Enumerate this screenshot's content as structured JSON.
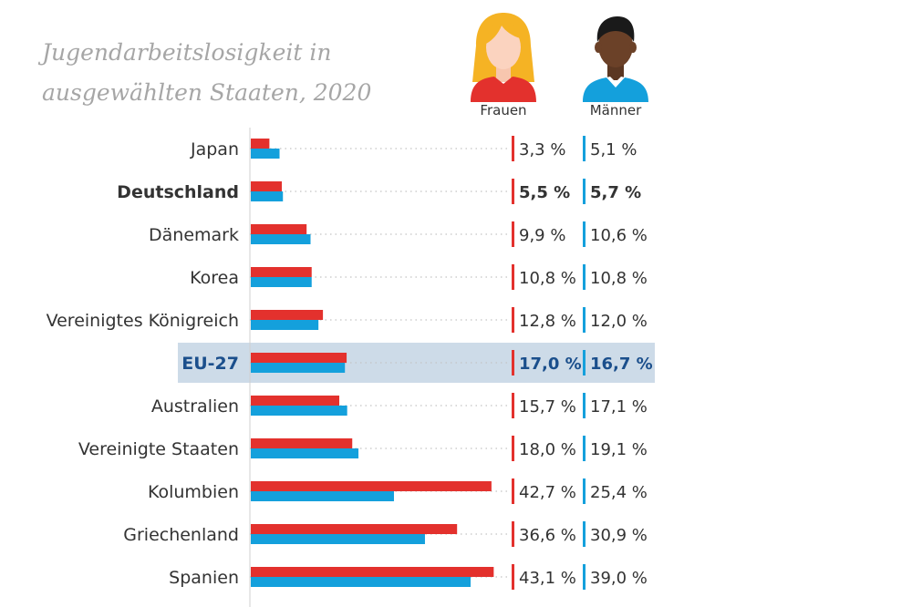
{
  "title_line1": "Jugendarbeitslosigkeit in",
  "title_line2": "ausgewählten Staaten, 2020",
  "legend": {
    "women_label": "Frauen",
    "men_label": "Männer"
  },
  "colors": {
    "women": "#e3312d",
    "men": "#14a0dc",
    "highlight_bg": "#cddbe8",
    "highlight_text": "#1b4f8c",
    "text": "#333333"
  },
  "icons": {
    "women": "woman-avatar-icon",
    "men": "man-avatar-icon"
  },
  "chart_data": {
    "type": "bar",
    "orientation": "horizontal",
    "categories": [
      "Japan",
      "Deutschland",
      "Dänemark",
      "Korea",
      "Vereinigtes Königreich",
      "EU-27",
      "Australien",
      "Vereinigte Staaten",
      "Kolumbien",
      "Griechenland",
      "Spanien"
    ],
    "series": [
      {
        "name": "Frauen",
        "values": [
          3.3,
          5.5,
          9.9,
          10.8,
          12.8,
          17.0,
          15.7,
          18.0,
          42.7,
          36.6,
          43.1
        ],
        "labels": [
          "3,3 %",
          "5,5 %",
          "9,9 %",
          "10,8 %",
          "12,8 %",
          "17,0 %",
          "15,7 %",
          "18,0 %",
          "42,7 %",
          "36,6 %",
          "43,1 %"
        ]
      },
      {
        "name": "Männer",
        "values": [
          5.1,
          5.7,
          10.6,
          10.8,
          12.0,
          16.7,
          17.1,
          19.1,
          25.4,
          30.9,
          39.0
        ],
        "labels": [
          "5,1 %",
          "5,7 %",
          "10,6 %",
          "10,8 %",
          "12,0 %",
          "16,7 %",
          "17,1 %",
          "19,1 %",
          "25,4 %",
          "30,9 %",
          "39,0 %"
        ]
      }
    ],
    "bold_categories": [
      "Deutschland"
    ],
    "highlighted_categories": [
      "EU-27"
    ],
    "xlim": [
      0,
      45
    ],
    "grid": false
  }
}
